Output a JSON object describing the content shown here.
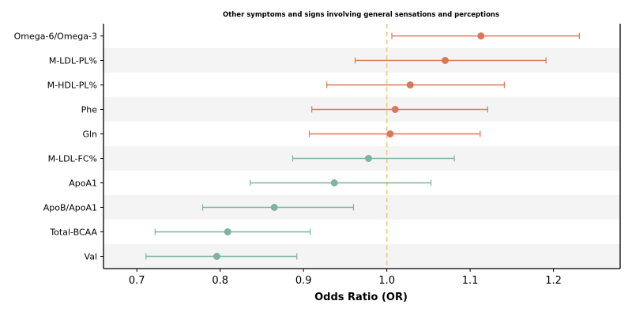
{
  "chart_data": {
    "type": "forest",
    "title": "Other symptoms and signs involving general sensations and perceptions",
    "xlabel": "Odds Ratio (OR)",
    "xlim": [
      0.66,
      1.28
    ],
    "xticks": [
      0.7,
      0.8,
      0.9,
      1.0,
      1.1,
      1.2
    ],
    "xtick_labels": [
      "0.7",
      "0.8",
      "0.9",
      "1.0",
      "1.1",
      "1.2"
    ],
    "reference_line": 1.0,
    "grid": false,
    "rows": [
      {
        "label": "Omega-6/Omega-3",
        "or": 1.113,
        "lo": 1.006,
        "hi": 1.231,
        "direction": "risk"
      },
      {
        "label": "M-LDL-PL%",
        "or": 1.07,
        "lo": 0.962,
        "hi": 1.191,
        "direction": "risk"
      },
      {
        "label": "M-HDL-PL%",
        "or": 1.028,
        "lo": 0.928,
        "hi": 1.141,
        "direction": "risk"
      },
      {
        "label": "Phe",
        "or": 1.01,
        "lo": 0.91,
        "hi": 1.121,
        "direction": "risk"
      },
      {
        "label": "Gln",
        "or": 1.004,
        "lo": 0.907,
        "hi": 1.112,
        "direction": "risk"
      },
      {
        "label": "M-LDL-FC%",
        "or": 0.978,
        "lo": 0.887,
        "hi": 1.081,
        "direction": "protective"
      },
      {
        "label": "ApoA1",
        "or": 0.937,
        "lo": 0.836,
        "hi": 1.053,
        "direction": "protective"
      },
      {
        "label": "ApoB/ApoA1",
        "or": 0.865,
        "lo": 0.779,
        "hi": 0.96,
        "direction": "protective"
      },
      {
        "label": "Total-BCAA",
        "or": 0.809,
        "lo": 0.722,
        "hi": 0.908,
        "direction": "protective"
      },
      {
        "label": "Val",
        "or": 0.796,
        "lo": 0.711,
        "hi": 0.892,
        "direction": "protective"
      }
    ]
  },
  "colors": {
    "risk": "#d9775a",
    "protective": "#7db49b",
    "reference_line": "#f0c987",
    "band": "#f4f4f4"
  }
}
